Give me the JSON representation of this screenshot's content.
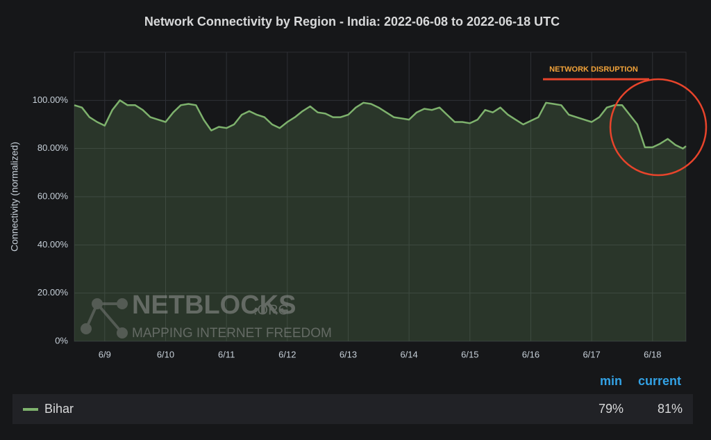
{
  "chart_data": {
    "type": "line",
    "title": "Network Connectivity by Region - India: 2022-06-08 to 2022-06-18 UTC",
    "y_label": "Connectivity (normalized)",
    "annotation": "NETWORK DISRUPTION",
    "watermark": [
      "NETBLOCKS",
      ".ORG",
      "MAPPING INTERNET FREEDOM"
    ],
    "xlim": [
      8.5,
      18.55
    ],
    "xticks": [
      {
        "value": 9,
        "label": "6/9"
      },
      {
        "value": 10,
        "label": "6/10"
      },
      {
        "value": 11,
        "label": "6/11"
      },
      {
        "value": 12,
        "label": "6/12"
      },
      {
        "value": 13,
        "label": "6/13"
      },
      {
        "value": 14,
        "label": "6/14"
      },
      {
        "value": 15,
        "label": "6/15"
      },
      {
        "value": 16,
        "label": "6/16"
      },
      {
        "value": 17,
        "label": "6/17"
      },
      {
        "value": 18,
        "label": "6/18"
      }
    ],
    "ylim": [
      0,
      120
    ],
    "yticks": [
      {
        "value": 0,
        "label": "0%"
      },
      {
        "value": 20,
        "label": "20.00%"
      },
      {
        "value": 40,
        "label": "40.00%"
      },
      {
        "value": 60,
        "label": "60.00%"
      },
      {
        "value": 80,
        "label": "80.00%"
      },
      {
        "value": 100,
        "label": "100.00%"
      }
    ],
    "grid": true,
    "x": [
      8.5,
      8.625,
      8.75,
      8.875,
      9.0,
      9.125,
      9.25,
      9.375,
      9.5,
      9.625,
      9.75,
      9.875,
      10.0,
      10.125,
      10.25,
      10.375,
      10.5,
      10.625,
      10.75,
      10.875,
      11.0,
      11.125,
      11.25,
      11.375,
      11.5,
      11.625,
      11.75,
      11.875,
      12.0,
      12.125,
      12.25,
      12.375,
      12.5,
      12.625,
      12.75,
      12.875,
      13.0,
      13.125,
      13.25,
      13.375,
      13.5,
      13.625,
      13.75,
      13.875,
      14.0,
      14.125,
      14.25,
      14.375,
      14.5,
      14.625,
      14.75,
      14.875,
      15.0,
      15.125,
      15.25,
      15.375,
      15.5,
      15.625,
      15.75,
      15.875,
      16.0,
      16.125,
      16.25,
      16.375,
      16.5,
      16.625,
      16.75,
      16.875,
      17.0,
      17.125,
      17.25,
      17.375,
      17.5,
      17.625,
      17.75,
      17.875,
      18.0,
      18.125,
      18.25,
      18.375,
      18.5,
      18.55
    ],
    "series": [
      {
        "name": "Bihar",
        "color": "#7eb26d",
        "values": [
          98,
          97,
          93,
          91,
          89.5,
          96,
          100,
          98,
          98,
          96,
          93,
          92,
          91,
          95,
          98,
          98.5,
          98,
          92,
          87.5,
          89,
          88.5,
          90,
          94,
          95.5,
          94,
          93,
          90,
          88.5,
          91,
          93,
          95.5,
          97.5,
          95,
          94.5,
          93,
          93,
          94,
          97,
          99,
          98.5,
          97,
          95,
          93,
          92.5,
          92,
          95,
          96.5,
          96,
          97,
          94,
          91,
          91,
          90.5,
          92,
          96,
          95,
          97,
          94,
          92,
          90,
          91.5,
          93,
          99,
          98.5,
          98,
          94,
          93,
          92,
          91,
          93,
          97,
          98,
          98,
          94,
          90,
          80.5,
          80.5,
          82,
          84,
          81.5,
          80,
          81
        ]
      }
    ],
    "legend_columns": [
      "min",
      "current"
    ],
    "legend_values": [
      79,
      81
    ],
    "legend_value_labels": [
      "79%",
      "81%"
    ]
  }
}
